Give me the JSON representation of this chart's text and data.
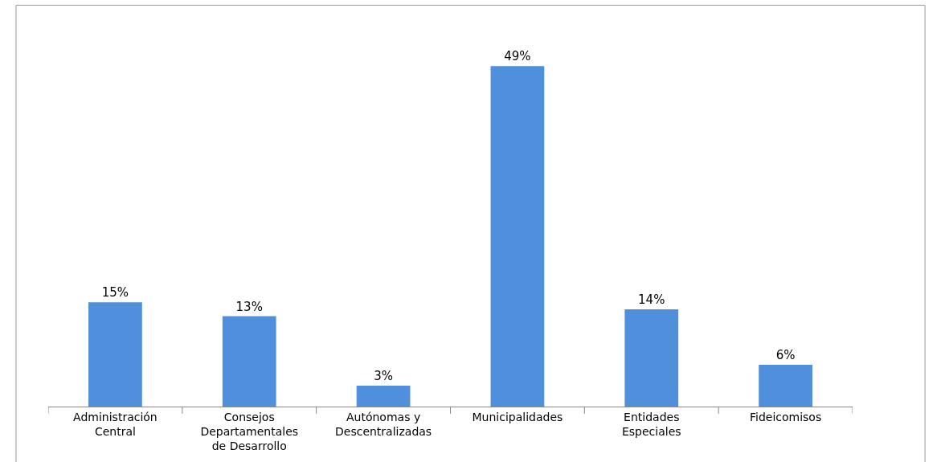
{
  "chart_data": {
    "type": "bar",
    "categories": [
      "Administración Central",
      "Consejos Departamentales de Desarrollo",
      "Autónomas y Descentralizadas",
      "Municipalidades",
      "Entidades Especiales",
      "Fideicomisos"
    ],
    "values": [
      15,
      13,
      3,
      49,
      14,
      6
    ],
    "value_labels": [
      "15%",
      "13%",
      "3%",
      "49%",
      "14%",
      "6%"
    ],
    "color": "#4f8fdc"
  }
}
